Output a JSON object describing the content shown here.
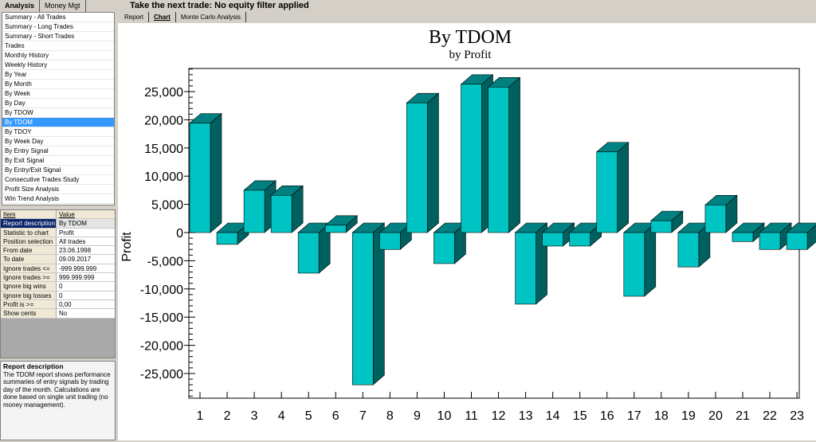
{
  "left_tabs": [
    "Analysis",
    "Money Mgt"
  ],
  "nav_items": [
    "Summary - All Trades",
    "Summary - Long Trades",
    "Summary - Short Trades",
    "Trades",
    "Monthly History",
    "Weekly History",
    "By Year",
    "By Month",
    "By Week",
    "By Day",
    "By TDOW",
    "By TDOM",
    "By TDOY",
    "By Week Day",
    "By Entry Signal",
    "By Exit Signal",
    "By Entry/Exit Signal",
    "Consecutive Trades Study",
    "Profit Size Analysis",
    "Win Trend Analysis"
  ],
  "selected_nav": "By TDOM",
  "props_header": {
    "item": "Item",
    "value": "Value"
  },
  "props": [
    [
      "Report description",
      "By TDOM"
    ],
    [
      "Statistic to chart",
      "Profit"
    ],
    [
      "Position selection",
      "All trades"
    ],
    [
      "From date",
      "23.06.1998"
    ],
    [
      "To date",
      "09.09.2017"
    ],
    [
      "Ignore trades <=",
      "-999.999.999"
    ],
    [
      "Ignore trades >=",
      "999.999.999"
    ],
    [
      "Ignore big wins",
      "0"
    ],
    [
      "Ignore big losses",
      "0"
    ],
    [
      "Profit is >=",
      "0,00"
    ],
    [
      "Show cents",
      "No"
    ]
  ],
  "description": {
    "title": "Report description",
    "text": "The TDOM report shows performance summaries of entry signals by trading day of the month.   Calculations are done based on single unit trading (no money management)."
  },
  "top_message": "Take the next trade: No equity filter applied",
  "chart_tabs": [
    "Report",
    "Chart",
    "Monte Carlo Analysis"
  ],
  "colors": {
    "bar_front": "#00c4c4",
    "bar_side": "#006060",
    "bar_top": "#008080"
  },
  "chart_data": {
    "type": "bar",
    "title": "By TDOM",
    "subtitle": "by Profit",
    "ylabel": "Profit",
    "xlabel": "",
    "categories": [
      "1",
      "2",
      "3",
      "4",
      "5",
      "6",
      "7",
      "8",
      "9",
      "10",
      "11",
      "12",
      "13",
      "14",
      "15",
      "16",
      "17",
      "18",
      "19",
      "20",
      "21",
      "22",
      "23"
    ],
    "values": [
      19400,
      -2100,
      7500,
      6600,
      -7200,
      1300,
      -27000,
      -3000,
      23000,
      -5500,
      26300,
      25800,
      -12700,
      -2400,
      -2400,
      14300,
      -11300,
      2100,
      -6100,
      4900,
      -1600,
      -3000,
      -3000
    ],
    "ylim": [
      -29000,
      29000
    ],
    "yticks": [
      -25000,
      -20000,
      -15000,
      -10000,
      -5000,
      0,
      5000,
      10000,
      15000,
      20000,
      25000
    ],
    "ytick_labels": [
      "-25,000",
      "-20,000",
      "-15,000",
      "-10,000",
      "-5,000",
      "0",
      "5,000",
      "10,000",
      "15,000",
      "20,000",
      "25,000"
    ]
  }
}
